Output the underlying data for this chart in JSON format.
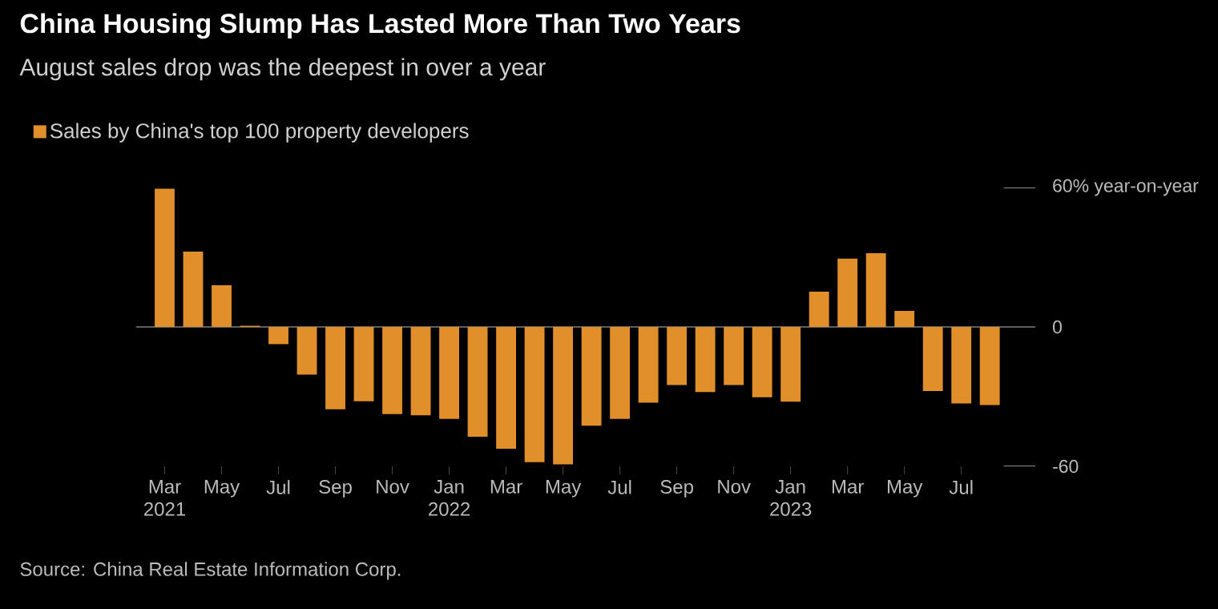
{
  "chart_data": {
    "type": "bar",
    "title": "China Housing Slump Has Lasted More Than Two Years",
    "subtitle": "August sales drop was the deepest in over a year",
    "categories": [
      "Mar 2021",
      null,
      "May",
      null,
      "Jul",
      null,
      "Sep",
      null,
      "Nov",
      null,
      "Jan 2022",
      null,
      "Mar",
      null,
      "May",
      null,
      "Jul",
      null,
      "Sep",
      null,
      "Nov",
      null,
      "Jan 2023",
      null,
      "Mar",
      null,
      "May",
      null,
      "Jul",
      null
    ],
    "series": [
      {
        "name": "Sales by China's top 100 property developers",
        "color": "#e08f2a",
        "values": [
          59.5,
          32.4,
          17.9,
          0.5,
          -7.4,
          -20.5,
          -35.4,
          -32,
          -37.5,
          -38,
          -39.6,
          -47.2,
          -52.4,
          -58.2,
          -59.1,
          -42.5,
          -39.6,
          -32.6,
          -25,
          -28,
          -25,
          -30.3,
          -32.2,
          15.2,
          29.4,
          31.7,
          6.9,
          -27.6,
          -32.9,
          -33.6
        ]
      }
    ],
    "ylim": [
      -60,
      60
    ],
    "yticks": [
      {
        "value": 60,
        "label": "60% year-on-year"
      },
      0,
      -60
    ],
    "legend": "top left",
    "ref_lines": [
      {
        "axis": "y",
        "value": 0,
        "color": "#bbbbbb"
      }
    ],
    "annotations": [
      "Source: China Real Estate Information Corp."
    ]
  }
}
